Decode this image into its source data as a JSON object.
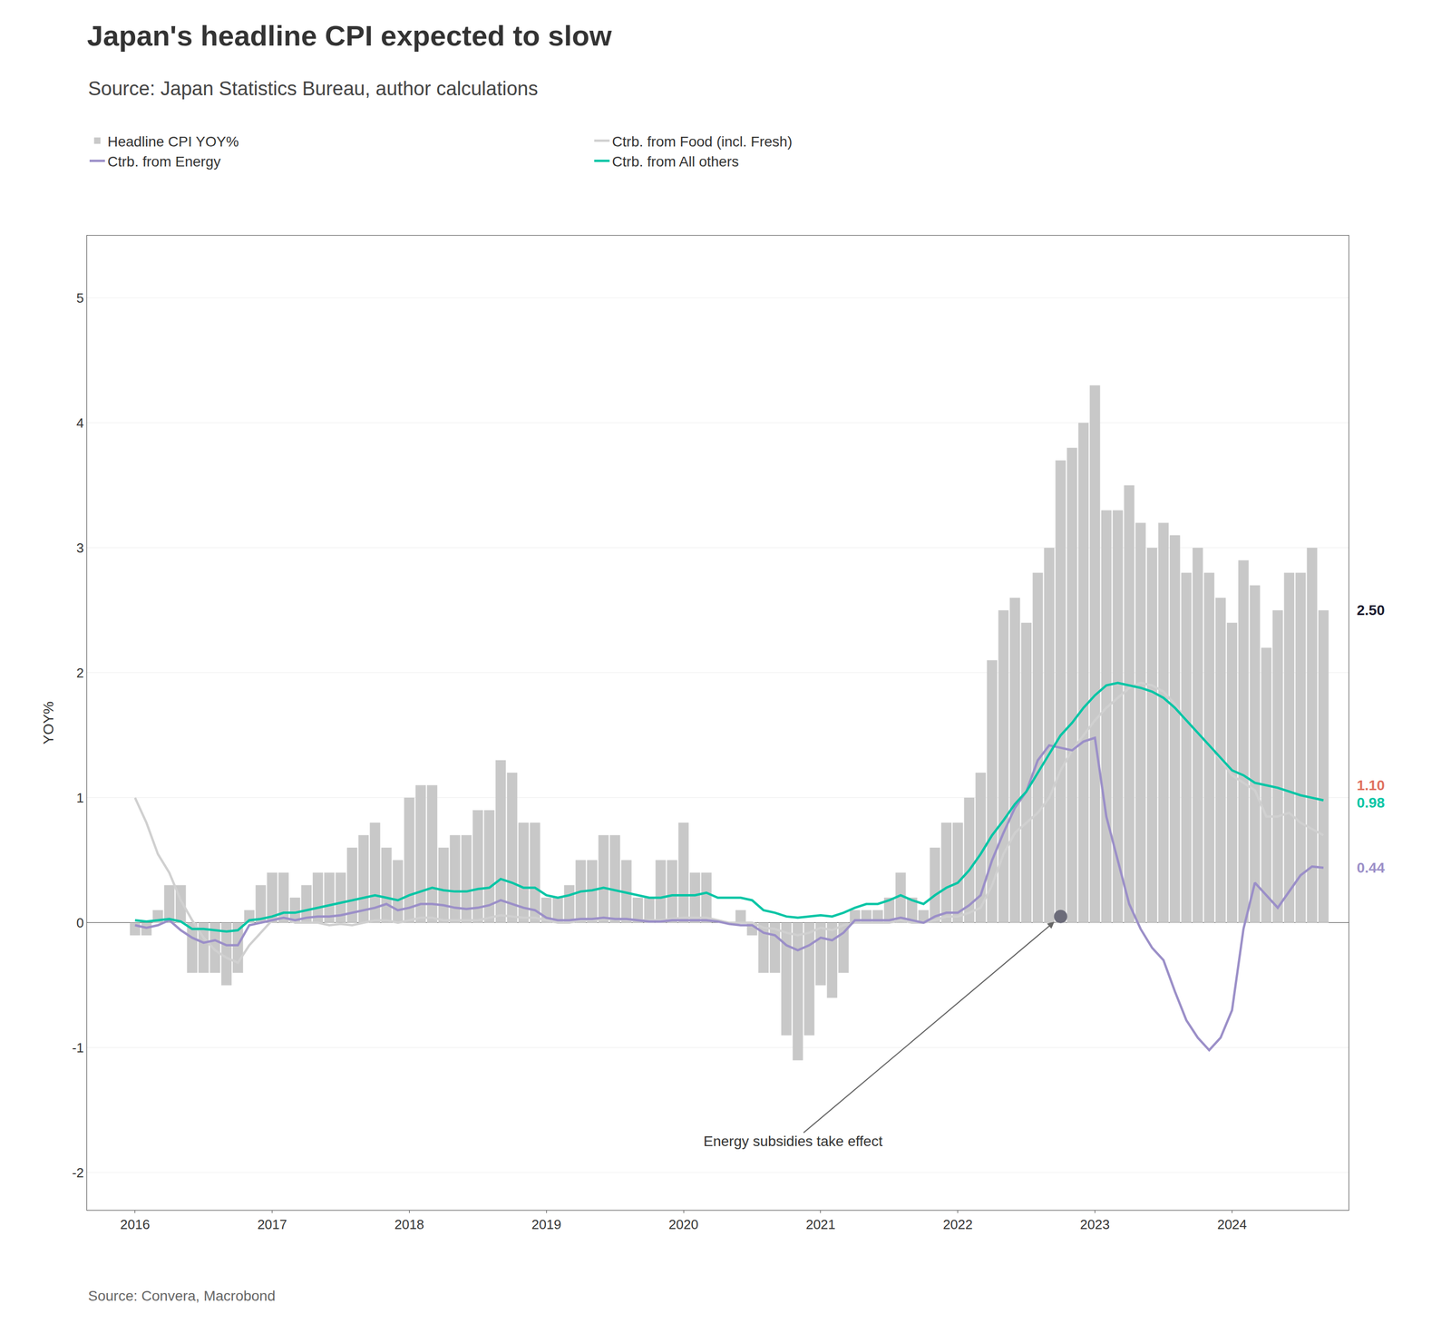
{
  "chart_data": {
    "type": "bar",
    "title": "Japan's headline CPI expected to slow",
    "subtitle": "Source: Japan Statistics Bureau, author calculations",
    "footer": "Source: Convera, Macrobond",
    "ylabel": "YOY%",
    "x": [
      2016,
      2016.083333,
      2016.166667,
      2016.25,
      2016.333333,
      2016.416667,
      2016.5,
      2016.583333,
      2016.666667,
      2016.75,
      2016.833333,
      2016.916667,
      2017,
      2017.083333,
      2017.166667,
      2017.25,
      2017.333333,
      2017.416667,
      2017.5,
      2017.583333,
      2017.666667,
      2017.75,
      2017.833333,
      2017.916667,
      2018,
      2018.083333,
      2018.166667,
      2018.25,
      2018.333333,
      2018.416667,
      2018.5,
      2018.583333,
      2018.666667,
      2018.75,
      2018.833333,
      2018.916667,
      2019,
      2019.083333,
      2019.166667,
      2019.25,
      2019.333333,
      2019.416667,
      2019.5,
      2019.583333,
      2019.666667,
      2019.75,
      2019.833333,
      2019.916667,
      2020,
      2020.083333,
      2020.166667,
      2020.25,
      2020.333333,
      2020.416667,
      2020.5,
      2020.583333,
      2020.666667,
      2020.75,
      2020.833333,
      2020.916667,
      2021,
      2021.083333,
      2021.166667,
      2021.25,
      2021.333333,
      2021.416667,
      2021.5,
      2021.583333,
      2021.666667,
      2021.75,
      2021.833333,
      2021.916667,
      2022,
      2022.083333,
      2022.166667,
      2022.25,
      2022.333333,
      2022.416667,
      2022.5,
      2022.583333,
      2022.666667,
      2022.75,
      2022.833333,
      2022.916667,
      2023,
      2023.083333,
      2023.166667,
      2023.25,
      2023.333333,
      2023.416667,
      2023.5,
      2023.583333,
      2023.666667,
      2023.75,
      2023.833333,
      2023.916667,
      2024,
      2024.083333,
      2024.166667,
      2024.25,
      2024.333333,
      2024.416667,
      2024.5,
      2024.583333,
      2024.666667
    ],
    "xlim": [
      2015.65,
      2024.85
    ],
    "xticks": [
      2016,
      2017,
      2018,
      2019,
      2020,
      2021,
      2022,
      2023,
      2024
    ],
    "ylim": [
      -2.3,
      5.5
    ],
    "yticks": [
      -2,
      -1,
      0,
      1,
      2,
      3,
      4,
      5
    ],
    "grid": "y",
    "legend": "top",
    "series": [
      {
        "name": "Headline CPI YOY%",
        "type": "bar",
        "color": "#c8c8c8",
        "values": [
          -0.1,
          -0.1,
          0.1,
          0.3,
          0.3,
          -0.4,
          -0.4,
          -0.4,
          -0.5,
          -0.4,
          0.1,
          0.3,
          0.4,
          0.4,
          0.2,
          0.3,
          0.4,
          0.4,
          0.4,
          0.6,
          0.7,
          0.8,
          0.6,
          0.5,
          1.0,
          1.1,
          1.1,
          0.6,
          0.7,
          0.7,
          0.9,
          0.9,
          1.3,
          1.2,
          0.8,
          0.8,
          0.2,
          0.2,
          0.3,
          0.5,
          0.5,
          0.7,
          0.7,
          0.5,
          0.2,
          0.2,
          0.5,
          0.5,
          0.8,
          0.4,
          0.4,
          0.0,
          0.0,
          0.1,
          -0.1,
          -0.4,
          -0.4,
          -0.9,
          -1.1,
          -0.9,
          -0.5,
          -0.6,
          -0.4,
          0.1,
          0.1,
          0.1,
          0.2,
          0.4,
          0.2,
          0.1,
          0.6,
          0.8,
          0.8,
          1.0,
          1.2,
          2.1,
          2.5,
          2.6,
          2.4,
          2.8,
          3.0,
          3.7,
          3.8,
          4.0,
          4.3,
          3.3,
          3.3,
          3.5,
          3.2,
          3.0,
          3.2,
          3.1,
          2.8,
          3.0,
          2.8,
          2.6,
          2.4,
          2.9,
          2.7,
          2.2,
          2.5,
          2.8,
          2.8,
          3.0,
          2.5
        ]
      },
      {
        "name": "Ctrb. from Food (incl. Fresh)",
        "type": "line",
        "color": "#d0d0d0",
        "values": [
          1.0,
          0.8,
          0.55,
          0.4,
          0.18,
          0.02,
          -0.12,
          -0.22,
          -0.28,
          -0.32,
          -0.18,
          -0.08,
          0.02,
          0.05,
          0.0,
          0.0,
          0.0,
          -0.02,
          -0.01,
          -0.02,
          0.0,
          0.02,
          0.02,
          0.0,
          0.02,
          0.04,
          0.04,
          0.02,
          0.02,
          0.02,
          0.02,
          0.04,
          0.06,
          0.05,
          0.04,
          0.04,
          0.02,
          0.0,
          0.0,
          0.02,
          0.02,
          0.03,
          0.03,
          0.02,
          0.02,
          0.02,
          0.02,
          0.03,
          0.04,
          0.04,
          0.04,
          0.02,
          0.0,
          0.0,
          0.0,
          -0.04,
          -0.05,
          -0.08,
          -0.1,
          -0.08,
          -0.04,
          -0.06,
          -0.02,
          0.0,
          0.0,
          0.0,
          0.0,
          0.02,
          0.0,
          0.0,
          0.02,
          0.05,
          0.05,
          0.08,
          0.12,
          0.3,
          0.55,
          0.72,
          0.8,
          0.88,
          1.0,
          1.22,
          1.38,
          1.5,
          1.62,
          1.72,
          1.8,
          1.88,
          1.92,
          1.9,
          1.85,
          1.75,
          1.62,
          1.52,
          1.42,
          1.3,
          1.18,
          1.12,
          1.06,
          0.85,
          0.85,
          0.88,
          0.8,
          0.75,
          0.7
        ]
      },
      {
        "name": "Ctrb. from Energy",
        "type": "line",
        "color": "#9b8fc8",
        "values": [
          -0.02,
          -0.04,
          -0.02,
          0.02,
          -0.06,
          -0.12,
          -0.16,
          -0.14,
          -0.18,
          -0.18,
          -0.02,
          0.0,
          0.02,
          0.04,
          0.02,
          0.04,
          0.05,
          0.05,
          0.06,
          0.08,
          0.1,
          0.12,
          0.15,
          0.1,
          0.12,
          0.15,
          0.15,
          0.14,
          0.12,
          0.11,
          0.12,
          0.14,
          0.18,
          0.15,
          0.12,
          0.1,
          0.04,
          0.02,
          0.02,
          0.03,
          0.03,
          0.04,
          0.03,
          0.03,
          0.02,
          0.01,
          0.01,
          0.02,
          0.02,
          0.02,
          0.02,
          0.01,
          -0.01,
          -0.02,
          -0.02,
          -0.08,
          -0.1,
          -0.18,
          -0.22,
          -0.18,
          -0.12,
          -0.14,
          -0.08,
          0.02,
          0.02,
          0.02,
          0.02,
          0.04,
          0.02,
          0.0,
          0.05,
          0.08,
          0.08,
          0.14,
          0.22,
          0.5,
          0.72,
          0.92,
          1.05,
          1.3,
          1.42,
          1.4,
          1.38,
          1.45,
          1.48,
          0.85,
          0.5,
          0.15,
          -0.05,
          -0.2,
          -0.3,
          -0.55,
          -0.78,
          -0.92,
          -1.02,
          -0.92,
          -0.7,
          -0.05,
          0.32,
          0.22,
          0.12,
          0.25,
          0.38,
          0.45,
          0.44
        ]
      },
      {
        "name": "Ctrb. from All others",
        "type": "line",
        "color": "#00c5a5",
        "values": [
          0.02,
          0.01,
          0.02,
          0.03,
          0.01,
          -0.05,
          -0.05,
          -0.06,
          -0.07,
          -0.06,
          0.02,
          0.03,
          0.05,
          0.08,
          0.08,
          0.1,
          0.12,
          0.14,
          0.16,
          0.18,
          0.2,
          0.22,
          0.2,
          0.18,
          0.22,
          0.25,
          0.28,
          0.26,
          0.25,
          0.25,
          0.27,
          0.28,
          0.35,
          0.32,
          0.28,
          0.28,
          0.22,
          0.2,
          0.22,
          0.25,
          0.26,
          0.28,
          0.26,
          0.24,
          0.22,
          0.2,
          0.2,
          0.22,
          0.22,
          0.22,
          0.24,
          0.2,
          0.2,
          0.2,
          0.18,
          0.1,
          0.08,
          0.05,
          0.04,
          0.05,
          0.06,
          0.05,
          0.08,
          0.12,
          0.15,
          0.15,
          0.18,
          0.22,
          0.18,
          0.15,
          0.22,
          0.28,
          0.32,
          0.42,
          0.55,
          0.7,
          0.82,
          0.95,
          1.05,
          1.2,
          1.35,
          1.5,
          1.6,
          1.72,
          1.82,
          1.9,
          1.92,
          1.9,
          1.88,
          1.85,
          1.8,
          1.72,
          1.62,
          1.52,
          1.42,
          1.32,
          1.22,
          1.18,
          1.12,
          1.1,
          1.08,
          1.05,
          1.02,
          1.0,
          0.98
        ]
      }
    ],
    "annotations": [
      {
        "text": "Energy subsidies take effect",
        "x": 2022.75,
        "y": 0.05,
        "text_x": 2020.8,
        "text_y": -1.75,
        "color": "#606070",
        "marker": "circle"
      },
      {
        "text": "2.50",
        "y": 2.5,
        "color": "#1a1a2e"
      },
      {
        "text": "1.10",
        "y": 1.1,
        "color": "#e07060"
      },
      {
        "text": "0.98",
        "y": 0.98,
        "color": "#00c5a5"
      },
      {
        "text": "0.44",
        "y": 0.44,
        "color": "#9b8fc8"
      }
    ]
  }
}
